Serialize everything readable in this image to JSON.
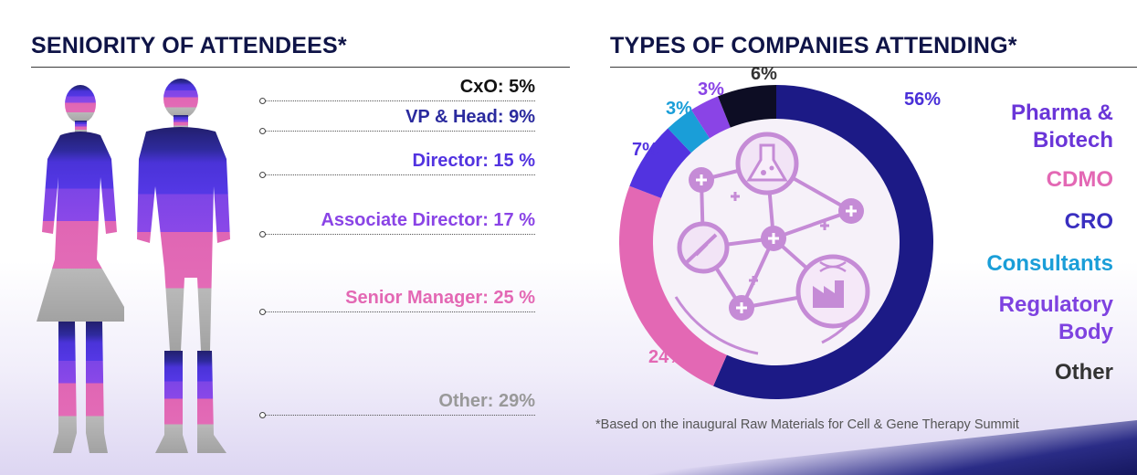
{
  "seniority": {
    "title": "SENIORITY OF ATTENDEES*",
    "levels": [
      {
        "label": "CxO: 5%",
        "value": 5,
        "color": "#111111"
      },
      {
        "label": "VP & Head: 9%",
        "value": 9,
        "color": "#2a2a9e"
      },
      {
        "label": "Director: 15 %",
        "value": 15,
        "color": "#5233e0"
      },
      {
        "label": "Associate Director: 17 %",
        "value": 17,
        "color": "#8a44e6"
      },
      {
        "label": "Senior Manager: 25 %",
        "value": 25,
        "color": "#e368b4"
      },
      {
        "label": "Other: 29%",
        "value": 29,
        "color": "#999999"
      }
    ]
  },
  "companies": {
    "title": "TYPES OF COMPANIES ATTENDING*",
    "legend": [
      {
        "label": "Pharma &\nBiotech",
        "color": "#6a35d8"
      },
      {
        "label": "CDMO",
        "color": "#e368b4"
      },
      {
        "label": "CRO",
        "color": "#3a2fc0"
      },
      {
        "label": "Consultants",
        "color": "#1a9ed8"
      },
      {
        "label": "Regulatory\nBody",
        "color": "#7e42e0"
      },
      {
        "label": "Other",
        "color": "#333333"
      }
    ]
  },
  "chart_data": [
    {
      "type": "bar",
      "title": "SENIORITY OF ATTENDEES*",
      "categories": [
        "CxO",
        "VP & Head",
        "Director",
        "Associate Director",
        "Senior Manager",
        "Other"
      ],
      "values": [
        5,
        9,
        15,
        17,
        25,
        29
      ],
      "unit": "%"
    },
    {
      "type": "pie",
      "title": "TYPES OF COMPANIES ATTENDING*",
      "categories": [
        "Pharma & Biotech",
        "CDMO",
        "CRO",
        "Consultants",
        "Regulatory Body",
        "Other"
      ],
      "values": [
        56,
        24,
        7,
        3,
        3,
        6
      ],
      "value_labels": [
        "56%",
        "24%",
        "7%",
        "3%",
        "3%",
        "6%"
      ],
      "colors": [
        "#1c1a86",
        "#e368b4",
        "#5233e0",
        "#1a9ed8",
        "#8a44e6",
        "#0d0d24"
      ],
      "label_colors": [
        "#4a30d8",
        "#e368b4",
        "#5233e0",
        "#1a9ed8",
        "#8a44e6",
        "#333333"
      ]
    }
  ],
  "footnote": "*Based on the inaugural Raw Materials for Cell & Gene Therapy Summit"
}
